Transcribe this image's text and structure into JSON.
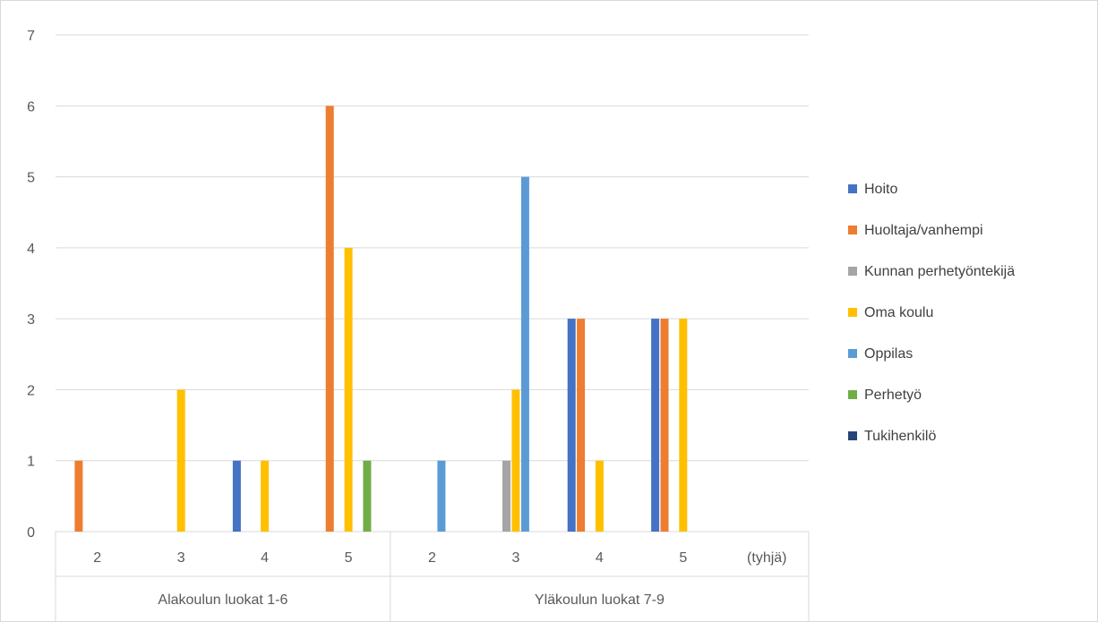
{
  "chart_data": {
    "type": "bar",
    "groups": [
      {
        "label": "Alakoulun luokat 1-6",
        "categories": [
          "2",
          "3",
          "4",
          "5"
        ]
      },
      {
        "label": "Yläkoulun luokat 7-9",
        "categories": [
          "2",
          "3",
          "4",
          "5",
          "(tyhjä)"
        ]
      }
    ],
    "series": [
      {
        "name": "Hoito",
        "color": "#4472C4",
        "values": [
          0,
          0,
          1,
          0,
          0,
          0,
          3,
          3,
          0
        ]
      },
      {
        "name": "Huoltaja/vanhempi",
        "color": "#ED7D31",
        "values": [
          1,
          0,
          0,
          6,
          0,
          0,
          3,
          3,
          0
        ]
      },
      {
        "name": "Kunnan perhetyöntekijä",
        "color": "#A5A5A5",
        "values": [
          0,
          0,
          0,
          0,
          0,
          1,
          0,
          0,
          0
        ]
      },
      {
        "name": "Oma koulu",
        "color": "#FFC000",
        "values": [
          0,
          2,
          1,
          4,
          0,
          2,
          1,
          3,
          0
        ]
      },
      {
        "name": "Oppilas",
        "color": "#5B9BD5",
        "values": [
          0,
          0,
          0,
          0,
          1,
          5,
          0,
          0,
          0
        ]
      },
      {
        "name": "Perhetyö",
        "color": "#70AD47",
        "values": [
          0,
          0,
          0,
          1,
          0,
          0,
          0,
          0,
          0
        ]
      },
      {
        "name": "Tukihenkilö",
        "color": "#264478",
        "values": [
          0,
          0,
          0,
          0,
          0,
          0,
          0,
          0,
          0
        ]
      }
    ],
    "yticks": [
      "0",
      "1",
      "2",
      "3",
      "4",
      "5",
      "6",
      "7"
    ],
    "ylim": [
      0,
      7
    ],
    "title": "",
    "xlabel": "",
    "ylabel": "",
    "grid": true,
    "legend": "right",
    "gridline_color": "#d9d9d9"
  }
}
